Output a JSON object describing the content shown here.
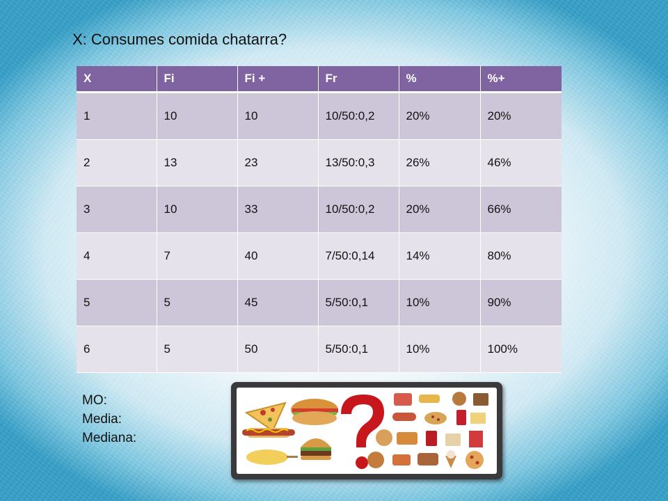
{
  "slide": {
    "title": "X: Consumes comida chatarra?"
  },
  "table": {
    "headers": [
      "X",
      "Fi",
      "Fi +",
      "Fr",
      "%",
      "%+"
    ],
    "rows": [
      [
        "1",
        "10",
        "10",
        "10/50:0,2",
        "20%",
        "20%"
      ],
      [
        "2",
        "13",
        "23",
        "13/50:0,3",
        "26%",
        "46%"
      ],
      [
        "3",
        "10",
        "33",
        "10/50:0,2",
        "20%",
        "66%"
      ],
      [
        "4",
        "7",
        "40",
        "7/50:0,14",
        "14%",
        "80%"
      ],
      [
        "5",
        "5",
        "45",
        "5/50:0,1",
        "10%",
        "90%"
      ],
      [
        "6",
        "5",
        "50",
        "5/50:0,1",
        "10%",
        "100%"
      ]
    ]
  },
  "stats": {
    "mo_label": "MO:",
    "media_label": "Media:",
    "mediana_label": "Mediana:"
  },
  "image": {
    "subject": "junk-food-collage-with-question-mark"
  },
  "colors": {
    "header": "#8064a2",
    "row_odd": "#cdc6d9",
    "row_even": "#e6e2ec",
    "question_mark": "#c8161d"
  }
}
